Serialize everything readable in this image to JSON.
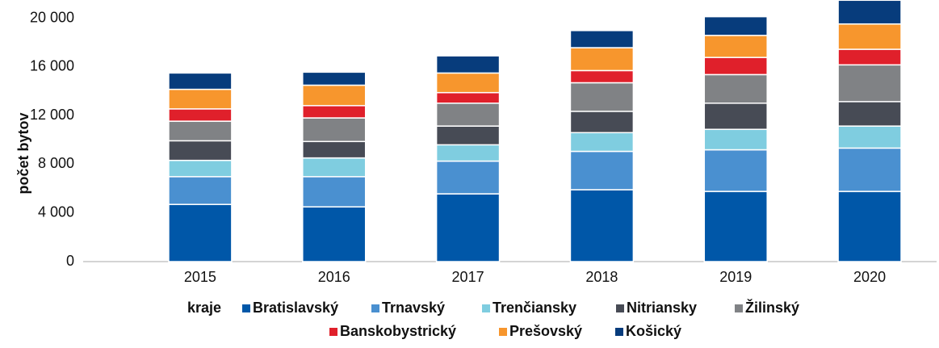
{
  "chart_data": {
    "type": "stacked_bar",
    "y_label": "počet bytov",
    "legend_title": "kraje",
    "categories": [
      "2015",
      "2016",
      "2017",
      "2018",
      "2019",
      "2020"
    ],
    "series": [
      {
        "name": "Bratislavský",
        "color": "#0057a8",
        "values": [
          4700,
          4500,
          5570,
          5910,
          5770,
          5770
        ]
      },
      {
        "name": "Trnavský",
        "color": "#4a90d0",
        "values": [
          2280,
          2480,
          2690,
          3150,
          3420,
          3560
        ]
      },
      {
        "name": "Trenčiansky",
        "color": "#7fcde0",
        "values": [
          1340,
          1540,
          1340,
          1540,
          1680,
          1810
        ]
      },
      {
        "name": "Nitriansky",
        "color": "#474b55",
        "values": [
          1610,
          1350,
          1540,
          1750,
          2150,
          2010
        ]
      },
      {
        "name": "Žilinský",
        "color": "#808285",
        "values": [
          1610,
          1940,
          1880,
          2350,
          2350,
          3020
        ]
      },
      {
        "name": "Banskobystrický",
        "color": "#e0202b",
        "values": [
          1010,
          1010,
          870,
          1000,
          1410,
          1280
        ]
      },
      {
        "name": "Prešovský",
        "color": "#f7962d",
        "values": [
          1610,
          1680,
          1610,
          1880,
          1810,
          2080
        ]
      },
      {
        "name": "Košický",
        "color": "#073c7c",
        "values": [
          1340,
          1070,
          1410,
          1410,
          1540,
          1950
        ]
      }
    ],
    "ylim": [
      0,
      21500
    ],
    "yticks": [
      0,
      {
        "value": 4000,
        "label": "4 000"
      },
      {
        "value": 8000,
        "label": "8 000"
      },
      {
        "value": 12000,
        "label": "12 000"
      },
      {
        "value": 16000,
        "label": "16 000"
      },
      {
        "value": 20000,
        "label": "20 000"
      }
    ],
    "grid": false
  }
}
